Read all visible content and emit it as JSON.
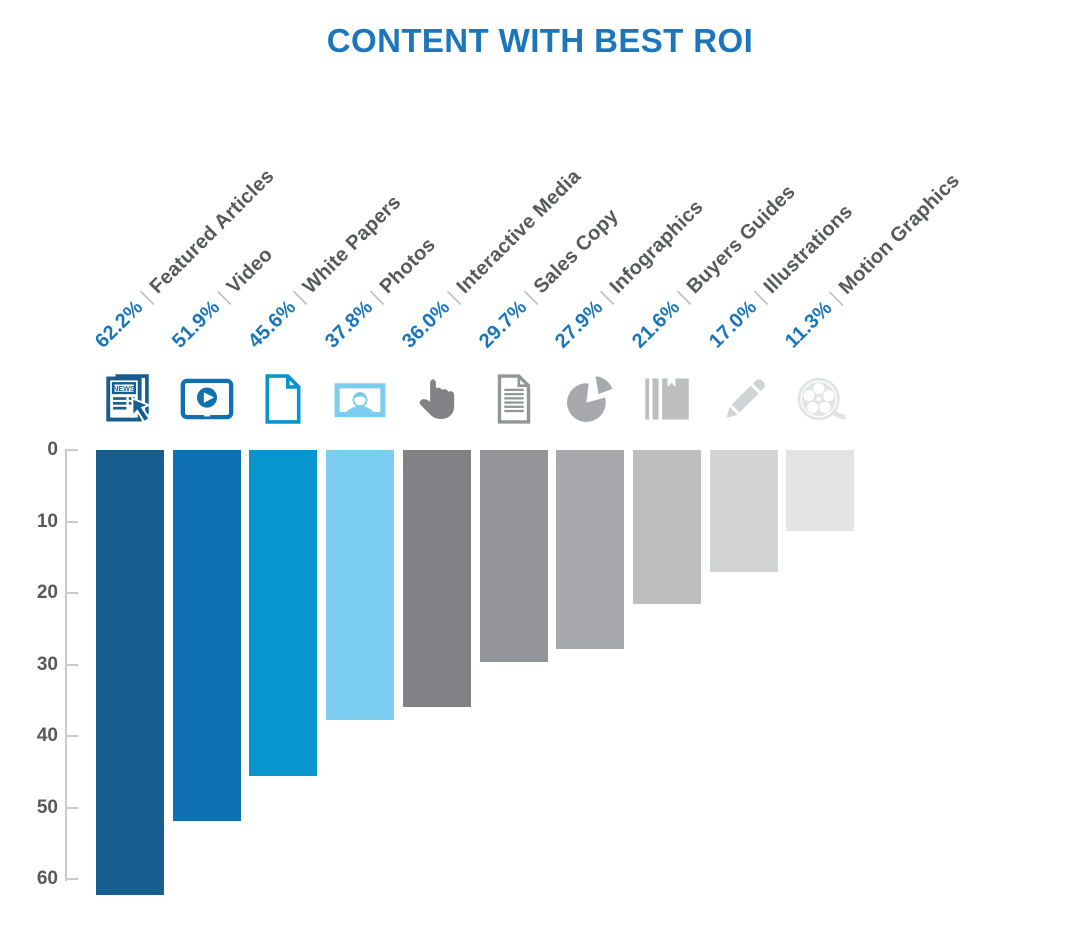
{
  "title": {
    "text": "CONTENT WITH BEST ROI",
    "color": "#1b76bc"
  },
  "axis": {
    "ticks": [
      "0",
      "10",
      "20",
      "30",
      "40",
      "50",
      "60"
    ],
    "line_color": "#c8c9cb",
    "label_color": "#58595b"
  },
  "label_style": {
    "percent_color": "#1a76bc",
    "separator": "|",
    "separator_color": "#bcbec0",
    "name_color": "#58595b"
  },
  "chart_data": {
    "type": "bar",
    "orientation": "inverted-vertical-hanging",
    "title": "CONTENT WITH BEST ROI",
    "xlabel": "",
    "ylabel": "",
    "ylim": [
      0,
      60
    ],
    "yticks": [
      0,
      10,
      20,
      30,
      40,
      50,
      60
    ],
    "grid": false,
    "legend_position": "none",
    "categories": [
      "Featured Articles",
      "Video",
      "White Papers",
      "Photos",
      "Interactive Media",
      "Sales Copy",
      "Infographics",
      "Buyers Guides",
      "Illustrations",
      "Motion Graphics"
    ],
    "values": [
      62.2,
      51.9,
      45.6,
      37.8,
      36.0,
      29.7,
      27.9,
      21.6,
      17.0,
      11.3
    ],
    "value_labels": [
      "62.2%",
      "51.9%",
      "45.6%",
      "37.8%",
      "36.0%",
      "29.7%",
      "27.9%",
      "21.6%",
      "17.0%",
      "11.3%"
    ],
    "items": [
      {
        "label": "Featured Articles",
        "value": 62.2,
        "value_label": "62.2%",
        "color": "#155e8e",
        "icon": "newspaper-cursor-icon"
      },
      {
        "label": "Video",
        "value": 51.9,
        "value_label": "51.9%",
        "color": "#0f71b1",
        "icon": "video-player-icon"
      },
      {
        "label": "White Papers",
        "value": 45.6,
        "value_label": "45.6%",
        "color": "#0795ce",
        "icon": "blank-document-icon"
      },
      {
        "label": "Photos",
        "value": 37.8,
        "value_label": "37.8%",
        "color": "#7bcdf0",
        "icon": "photo-portrait-icon"
      },
      {
        "label": "Interactive Media",
        "value": 36.0,
        "value_label": "36.0%",
        "color": "#808285",
        "icon": "pointing-hand-icon"
      },
      {
        "label": "Sales Copy",
        "value": 29.7,
        "value_label": "29.7%",
        "color": "#939598",
        "icon": "text-document-icon"
      },
      {
        "label": "Infographics",
        "value": 27.9,
        "value_label": "27.9%",
        "color": "#a7a9ac",
        "icon": "pie-chart-icon"
      },
      {
        "label": "Buyers Guides",
        "value": 21.6,
        "value_label": "21.6%",
        "color": "#bcbec0",
        "icon": "book-bookmark-icon"
      },
      {
        "label": "Illustrations",
        "value": 17.0,
        "value_label": "17.0%",
        "color": "#d1d3d4",
        "icon": "pencil-icon"
      },
      {
        "label": "Motion Graphics",
        "value": 11.3,
        "value_label": "11.3%",
        "color": "#e2e3e5",
        "icon": "film-reel-icon"
      }
    ]
  }
}
